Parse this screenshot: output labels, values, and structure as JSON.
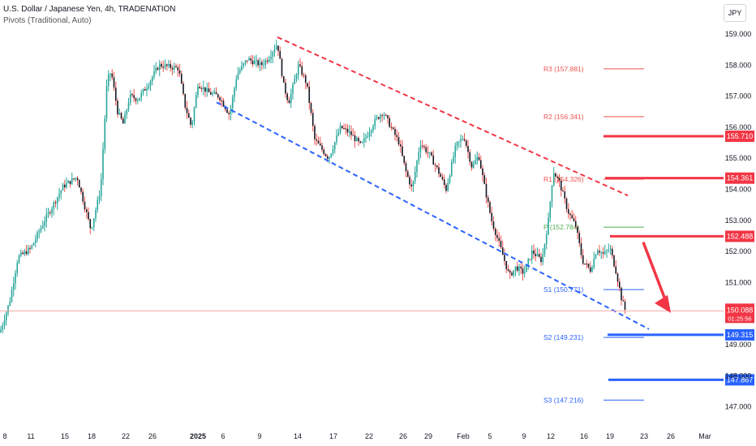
{
  "header": {
    "title": "U.S. Dollar / Japanese Yen, 4h, TRADENATION",
    "indicator": "Pivots (Traditional, Auto)"
  },
  "currency_button": "JPY",
  "price_label": {
    "price": "150.088",
    "countdown": "01:25:56"
  },
  "colors": {
    "up": "#26a69a",
    "down": "#ef5350",
    "candle_body": "#131722",
    "resistance": "#f23645",
    "support": "#2962ff",
    "pivot": "#4caf50"
  },
  "chart_data": {
    "type": "candlestick",
    "title": "U.S. Dollar / Japanese Yen, 4h, TRADENATION",
    "ylim": [
      146.4,
      159.4
    ],
    "y_ticks": [
      "159.000",
      "158.000",
      "157.000",
      "156.000",
      "155.000",
      "154.000",
      "153.000",
      "152.000",
      "151.000",
      "150.000",
      "149.000",
      "148.000",
      "147.000"
    ],
    "x_ticks": [
      "8",
      "11",
      "15",
      "18",
      "22",
      "26",
      "2025",
      "6",
      "9",
      "14",
      "17",
      "22",
      "26",
      "29",
      "Feb",
      "5",
      "9",
      "12",
      "16",
      "19",
      "23",
      "26",
      "Mar"
    ],
    "price_path": [
      [
        0,
        149.4
      ],
      [
        12,
        150.4
      ],
      [
        22,
        151.8
      ],
      [
        38,
        152.1
      ],
      [
        55,
        153.0
      ],
      [
        78,
        154.1
      ],
      [
        95,
        154.4
      ],
      [
        112,
        152.7
      ],
      [
        124,
        154.0
      ],
      [
        132,
        157.5
      ],
      [
        137,
        157.8
      ],
      [
        145,
        156.5
      ],
      [
        152,
        156.1
      ],
      [
        160,
        157.0
      ],
      [
        170,
        156.9
      ],
      [
        183,
        157.4
      ],
      [
        196,
        158.0
      ],
      [
        220,
        157.9
      ],
      [
        228,
        156.7
      ],
      [
        236,
        156.0
      ],
      [
        244,
        157.4
      ],
      [
        258,
        157.1
      ],
      [
        270,
        157.0
      ],
      [
        283,
        156.4
      ],
      [
        292,
        157.7
      ],
      [
        305,
        158.2
      ],
      [
        322,
        158.0
      ],
      [
        330,
        158.2
      ],
      [
        342,
        158.7
      ],
      [
        350,
        157.3
      ],
      [
        356,
        156.8
      ],
      [
        368,
        158.0
      ],
      [
        378,
        157.4
      ],
      [
        388,
        155.6
      ],
      [
        405,
        155.0
      ],
      [
        420,
        156.0
      ],
      [
        432,
        155.8
      ],
      [
        445,
        155.4
      ],
      [
        462,
        156.2
      ],
      [
        472,
        156.5
      ],
      [
        482,
        156.0
      ],
      [
        492,
        155.5
      ],
      [
        500,
        154.6
      ],
      [
        508,
        154.0
      ],
      [
        518,
        155.5
      ],
      [
        530,
        155.1
      ],
      [
        540,
        154.6
      ],
      [
        550,
        154.0
      ],
      [
        562,
        155.4
      ],
      [
        572,
        155.7
      ],
      [
        582,
        154.7
      ],
      [
        590,
        155.1
      ],
      [
        598,
        154.0
      ],
      [
        606,
        153.0
      ],
      [
        616,
        152.2
      ],
      [
        628,
        151.2
      ],
      [
        636,
        151.5
      ],
      [
        646,
        151.3
      ],
      [
        656,
        152.0
      ],
      [
        668,
        151.7
      ],
      [
        676,
        153.0
      ],
      [
        682,
        154.6
      ],
      [
        690,
        154.2
      ],
      [
        700,
        153.3
      ],
      [
        710,
        152.8
      ],
      [
        718,
        151.7
      ],
      [
        728,
        151.4
      ],
      [
        736,
        152.1
      ],
      [
        744,
        151.9
      ],
      [
        752,
        152.1
      ],
      [
        760,
        151.3
      ],
      [
        766,
        150.5
      ],
      [
        772,
        150.0
      ]
    ],
    "channel": {
      "upper": {
        "from": {
          "x": "9",
          "y": 158.9
        },
        "to": {
          "x": "23",
          "y": 153.8
        }
      },
      "lower": {
        "from": {
          "x": "6",
          "y": 156.8
        },
        "to": {
          "x": "23",
          "y": 149.5
        }
      }
    },
    "pivots": [
      {
        "label": "R3 (157.881)",
        "value": 157.881
      },
      {
        "label": "R2 (156.341)",
        "value": 156.341
      },
      {
        "label": "R1 (154.326)",
        "value": 154.326
      },
      {
        "label": "P (152.784)",
        "value": 152.784
      },
      {
        "label": "S1 (150.771)",
        "value": 150.771
      },
      {
        "label": "S2 (149.231)",
        "value": 149.231
      },
      {
        "label": "S3 (147.216)",
        "value": 147.216
      }
    ],
    "levels": [
      {
        "label": "155.710",
        "value": 155.71,
        "role": "resistance"
      },
      {
        "label": "154.361",
        "value": 154.361,
        "role": "resistance"
      },
      {
        "label": "152.488",
        "value": 152.488,
        "role": "resistance"
      },
      {
        "label": "149.315",
        "value": 149.315,
        "role": "support"
      },
      {
        "label": "147.867",
        "value": 147.867,
        "role": "support"
      }
    ],
    "current_price": 150.088,
    "arrow": {
      "from": 152.3,
      "to": 150.1,
      "direction": "down"
    }
  }
}
